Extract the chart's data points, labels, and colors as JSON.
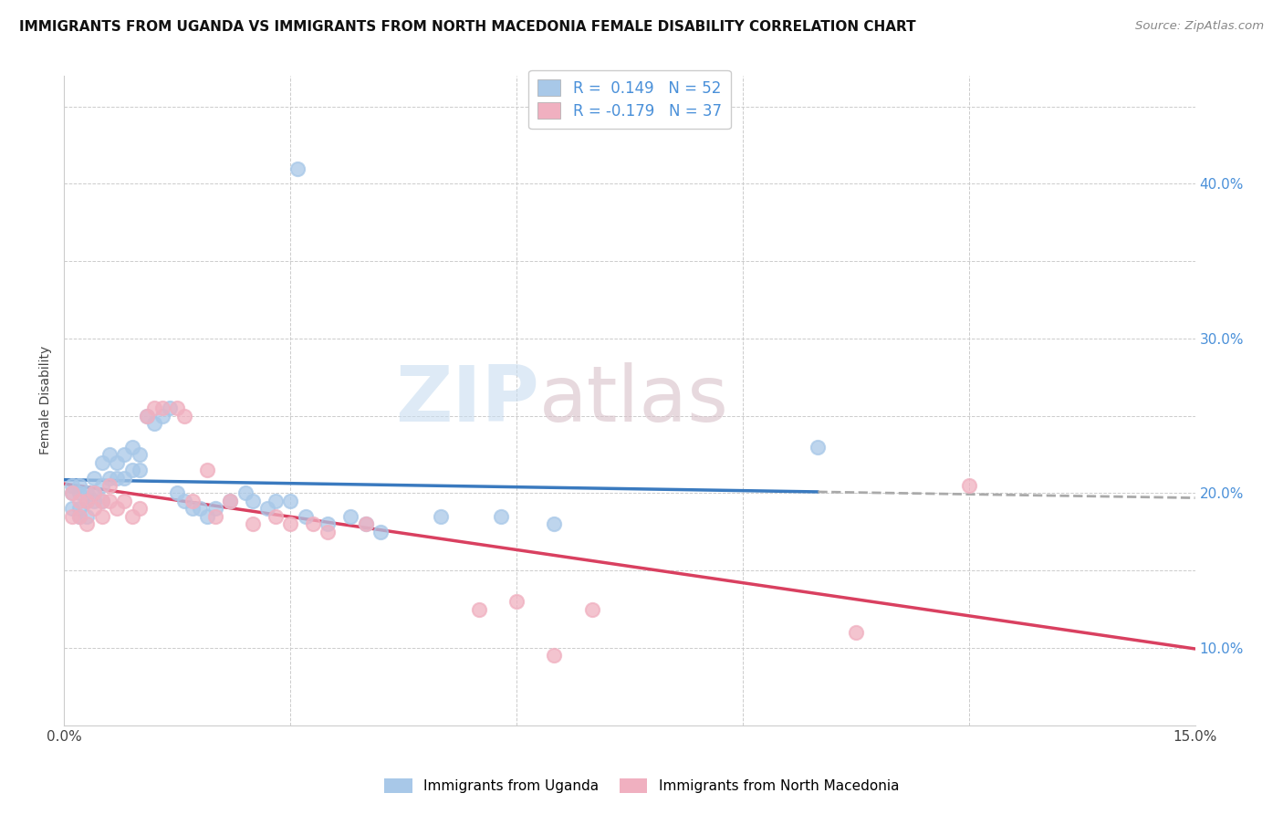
{
  "title": "IMMIGRANTS FROM UGANDA VS IMMIGRANTS FROM NORTH MACEDONIA FEMALE DISABILITY CORRELATION CHART",
  "source": "Source: ZipAtlas.com",
  "ylabel": "Female Disability",
  "xlim": [
    0.0,
    0.15
  ],
  "ylim": [
    0.0,
    0.42
  ],
  "R_uganda": 0.149,
  "N_uganda": 52,
  "R_north_mac": -0.179,
  "N_north_mac": 37,
  "color_uganda": "#a8c8e8",
  "color_north_mac": "#f0b0c0",
  "trendline_uganda_color": "#3a7abf",
  "trendline_north_mac_color": "#d94060",
  "trendline_dashed_color": "#aaaaaa",
  "watermark_zip": "ZIP",
  "watermark_atlas": "atlas",
  "uganda_x": [
    0.001,
    0.001,
    0.001,
    0.002,
    0.002,
    0.002,
    0.002,
    0.003,
    0.003,
    0.003,
    0.004,
    0.004,
    0.004,
    0.005,
    0.005,
    0.005,
    0.006,
    0.006,
    0.007,
    0.007,
    0.008,
    0.008,
    0.009,
    0.009,
    0.01,
    0.01,
    0.011,
    0.012,
    0.013,
    0.014,
    0.015,
    0.016,
    0.017,
    0.018,
    0.019,
    0.02,
    0.022,
    0.024,
    0.025,
    0.027,
    0.028,
    0.03,
    0.032,
    0.035,
    0.038,
    0.04,
    0.042,
    0.05,
    0.058,
    0.065,
    0.1,
    0.031
  ],
  "uganda_y": [
    0.15,
    0.155,
    0.14,
    0.15,
    0.155,
    0.14,
    0.135,
    0.15,
    0.145,
    0.135,
    0.16,
    0.15,
    0.145,
    0.17,
    0.155,
    0.145,
    0.175,
    0.16,
    0.17,
    0.16,
    0.175,
    0.16,
    0.18,
    0.165,
    0.175,
    0.165,
    0.2,
    0.195,
    0.2,
    0.205,
    0.15,
    0.145,
    0.14,
    0.14,
    0.135,
    0.14,
    0.145,
    0.15,
    0.145,
    0.14,
    0.145,
    0.145,
    0.135,
    0.13,
    0.135,
    0.13,
    0.125,
    0.135,
    0.135,
    0.13,
    0.18,
    0.36
  ],
  "north_mac_x": [
    0.001,
    0.001,
    0.002,
    0.002,
    0.003,
    0.003,
    0.004,
    0.004,
    0.005,
    0.005,
    0.006,
    0.006,
    0.007,
    0.008,
    0.009,
    0.01,
    0.011,
    0.012,
    0.013,
    0.015,
    0.016,
    0.017,
    0.019,
    0.02,
    0.022,
    0.025,
    0.028,
    0.03,
    0.033,
    0.035,
    0.04,
    0.055,
    0.06,
    0.065,
    0.07,
    0.12,
    0.105
  ],
  "north_mac_y": [
    0.15,
    0.135,
    0.145,
    0.135,
    0.145,
    0.13,
    0.15,
    0.14,
    0.145,
    0.135,
    0.155,
    0.145,
    0.14,
    0.145,
    0.135,
    0.14,
    0.2,
    0.205,
    0.205,
    0.205,
    0.2,
    0.145,
    0.165,
    0.135,
    0.145,
    0.13,
    0.135,
    0.13,
    0.13,
    0.125,
    0.13,
    0.075,
    0.08,
    0.045,
    0.075,
    0.155,
    0.06
  ]
}
